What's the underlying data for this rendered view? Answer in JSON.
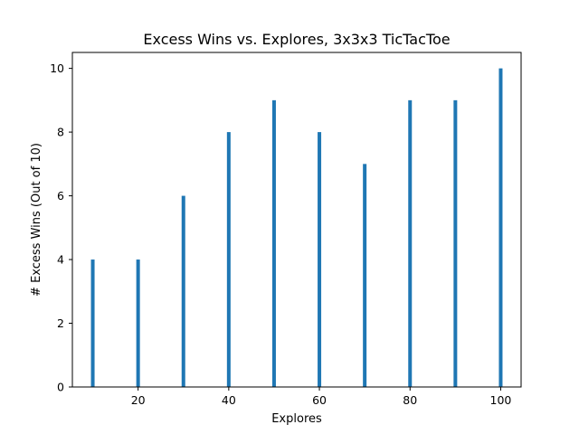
{
  "chart_data": {
    "type": "bar",
    "title": "Excess Wins vs. Explores, 3x3x3 TicTacToe",
    "xlabel": "Explores",
    "ylabel": "# Excess Wins (Out of 10)",
    "x": [
      10,
      20,
      30,
      40,
      50,
      60,
      70,
      80,
      90,
      100
    ],
    "values": [
      4,
      4,
      6,
      8,
      9,
      8,
      7,
      9,
      9,
      10
    ],
    "xlim": [
      5.5,
      104.5
    ],
    "ylim": [
      0,
      10.5
    ],
    "xticks": [
      20,
      40,
      60,
      80,
      100
    ],
    "yticks": [
      0,
      2,
      4,
      6,
      8,
      10
    ],
    "bar_color": "#1f77b4",
    "grid": false
  }
}
